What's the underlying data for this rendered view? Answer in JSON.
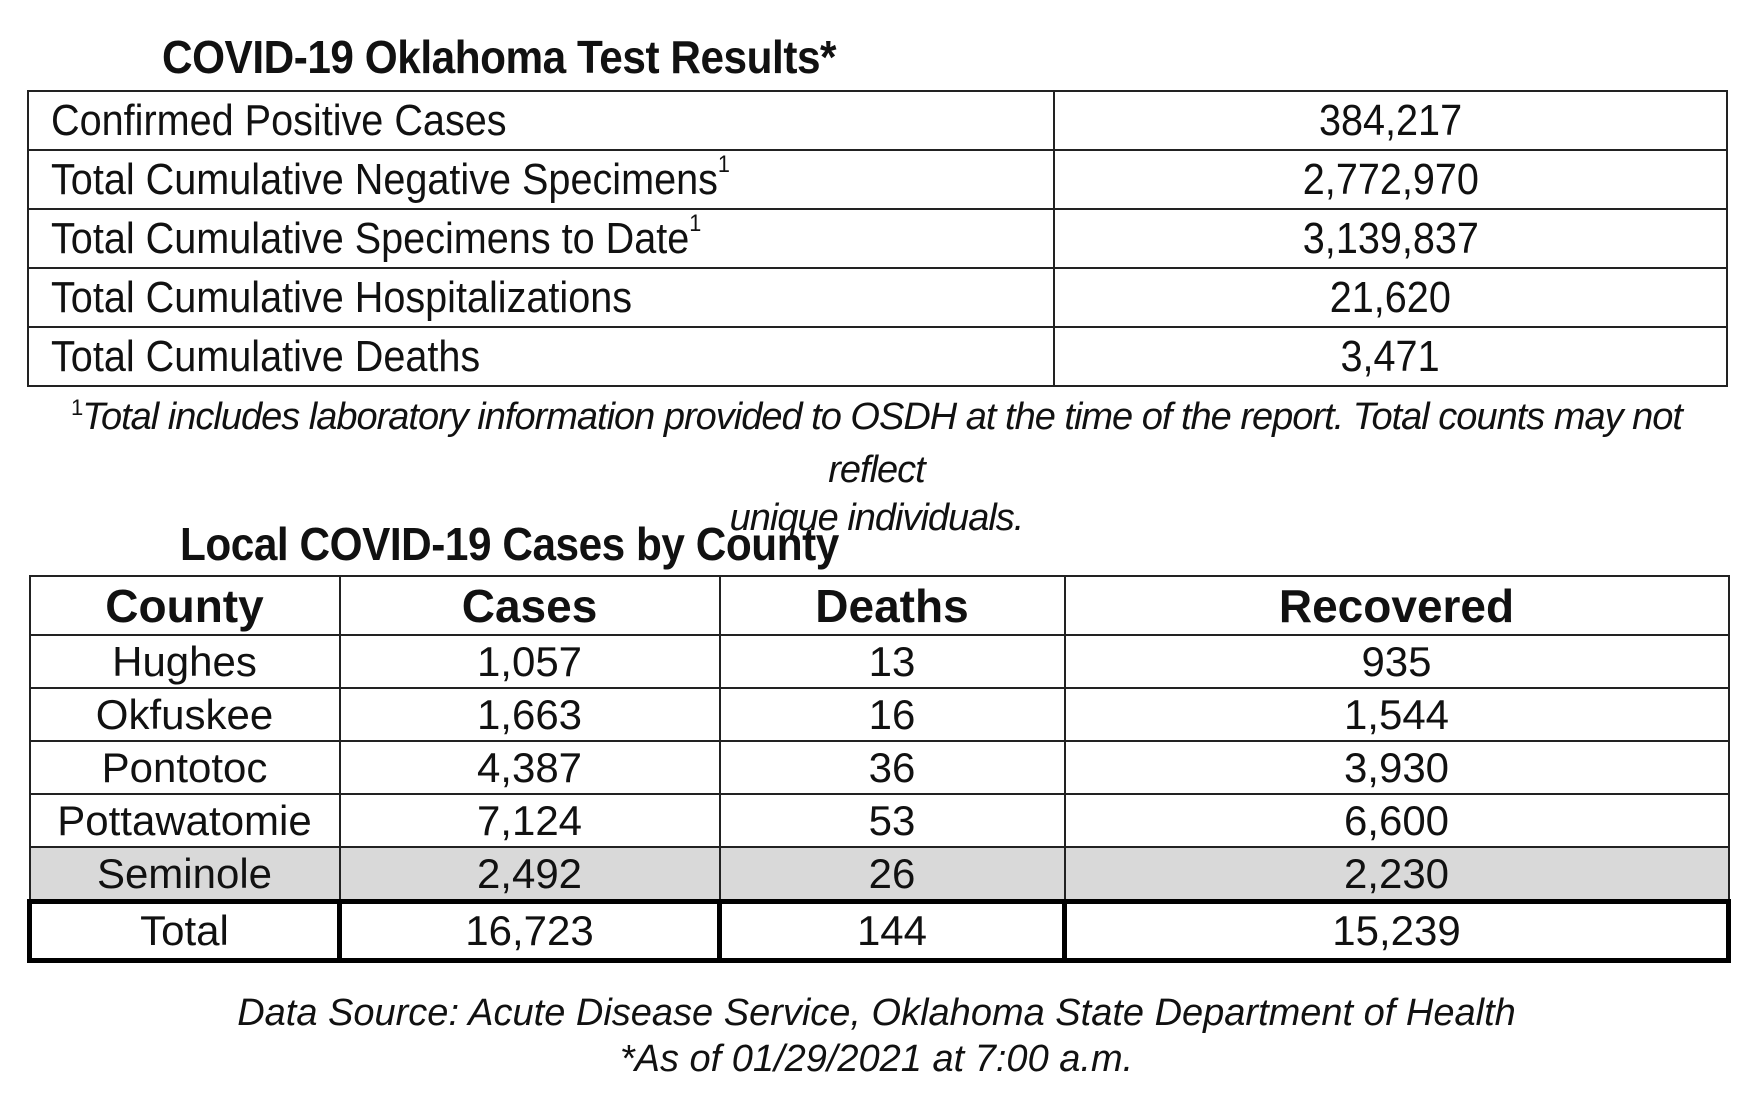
{
  "test_results": {
    "title": "COVID-19 Oklahoma Test Results*",
    "rows": [
      {
        "label": "Confirmed Positive Cases",
        "sup": "",
        "value": "384,217"
      },
      {
        "label": "Total Cumulative Negative Specimens",
        "sup": "1",
        "value": "2,772,970"
      },
      {
        "label": "Total Cumulative Specimens to Date",
        "sup": "1",
        "value": "3,139,837"
      },
      {
        "label": "Total Cumulative Hospitalizations",
        "sup": "",
        "value": "21,620"
      },
      {
        "label": "Total Cumulative Deaths",
        "sup": "",
        "value": "3,471"
      }
    ],
    "footnote_mark": "1",
    "footnote_line1": "Total includes laboratory information provided to OSDH at the time of the report. Total counts may not reflect",
    "footnote_line2": "unique individuals."
  },
  "county_table": {
    "title": "Local COVID-19 Cases by County",
    "headers": [
      "County",
      "Cases",
      "Deaths",
      "Recovered"
    ],
    "rows": [
      [
        "Hughes",
        "1,057",
        "13",
        "935"
      ],
      [
        "Okfuskee",
        "1,663",
        "16",
        "1,544"
      ],
      [
        "Pontotoc",
        "4,387",
        "36",
        "3,930"
      ],
      [
        "Pottawatomie",
        "7,124",
        "53",
        "6,600"
      ],
      [
        "Seminole",
        "2,492",
        "26",
        "2,230"
      ]
    ],
    "total": [
      "Total",
      "16,723",
      "144",
      "15,239"
    ],
    "shaded_row_color": "#d9d9d9"
  },
  "source": {
    "line1": "Data Source: Acute Disease Service, Oklahoma State Department of Health",
    "line2": "*As of 01/29/2021 at 7:00 a.m."
  }
}
